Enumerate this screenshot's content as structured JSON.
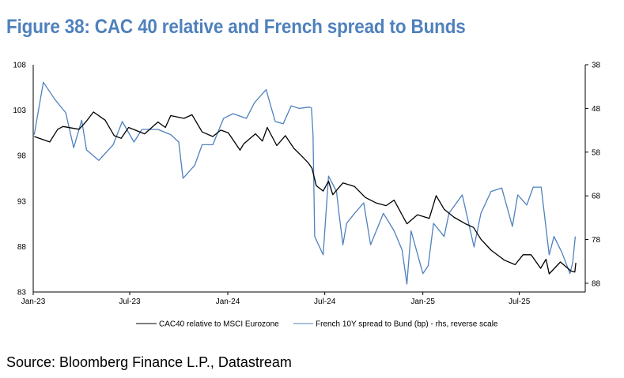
{
  "title": "Figure 38: CAC 40 relative and French spread to Bunds",
  "source": "Source: Bloomberg Finance L.P., Datastream",
  "chart_data": {
    "type": "line",
    "title": "Figure 38: CAC 40 relative and French spread to Bunds",
    "x_ticks": [
      "Jan-23",
      "Jul-23",
      "Jan-24",
      "Jul-24",
      "Jan-25",
      "Jul-25"
    ],
    "x_tick_dates": [
      "2023-01-01",
      "2023-07-01",
      "2024-01-01",
      "2024-07-01",
      "2025-01-01",
      "2025-07-01"
    ],
    "xlim": [
      "2023-01-01",
      "2025-10-31"
    ],
    "y_left": {
      "ticks": [
        "108",
        "103",
        "98",
        "93",
        "88",
        "83"
      ],
      "ylim": [
        83,
        108
      ]
    },
    "y_right": {
      "ticks": [
        "38",
        "48",
        "58",
        "68",
        "78",
        "88"
      ],
      "ylim": [
        38,
        90
      ],
      "reversed": true
    },
    "grid": false,
    "legend_position": "bottom",
    "series": [
      {
        "name": "CAC40 relative to MSCI Eurozone",
        "axis": "left",
        "color": "#000000",
        "x": [
          "2023-01-03",
          "2023-02-01",
          "2023-02-16",
          "2023-02-26",
          "2023-03-28",
          "2023-04-11",
          "2023-04-24",
          "2023-05-16",
          "2023-06-02",
          "2023-06-15",
          "2023-06-29",
          "2023-07-29",
          "2023-08-23",
          "2023-09-06",
          "2023-09-16",
          "2023-10-11",
          "2023-10-26",
          "2023-11-14",
          "2023-12-04",
          "2023-12-19",
          "2024-01-02",
          "2024-01-24",
          "2024-01-31",
          "2024-02-22",
          "2024-03-06",
          "2024-03-15",
          "2024-04-02",
          "2024-04-18",
          "2024-05-04",
          "2024-05-18",
          "2024-05-31",
          "2024-06-07",
          "2024-06-15",
          "2024-06-28",
          "2024-07-08",
          "2024-07-16",
          "2024-08-04",
          "2024-08-26",
          "2024-09-15",
          "2024-10-05",
          "2024-10-24",
          "2024-11-08",
          "2024-12-02",
          "2024-12-22",
          "2025-01-13",
          "2025-01-26",
          "2025-02-10",
          "2025-03-01",
          "2025-03-22",
          "2025-04-06",
          "2025-04-20",
          "2025-05-09",
          "2025-06-03",
          "2025-06-23",
          "2025-07-08",
          "2025-07-23",
          "2025-08-10",
          "2025-08-20",
          "2025-08-26",
          "2025-09-16",
          "2025-10-06",
          "2025-10-13",
          "2025-10-15"
        ],
        "values": [
          100.1,
          99.5,
          100.9,
          101.2,
          100.9,
          101.8,
          102.8,
          101.9,
          100.2,
          99.9,
          101.1,
          100.4,
          101.7,
          101.1,
          102.4,
          102.1,
          102.5,
          100.6,
          100.1,
          100.8,
          100.5,
          98.6,
          99.3,
          100.4,
          99.6,
          101.1,
          99.1,
          100.2,
          98.8,
          98.0,
          97.2,
          96.6,
          94.7,
          94.1,
          95.2,
          93.7,
          95.0,
          94.6,
          93.4,
          92.8,
          92.5,
          93.1,
          90.5,
          91.5,
          91.1,
          93.6,
          92.1,
          91.2,
          90.5,
          90.1,
          88.8,
          87.6,
          86.5,
          86.0,
          87.1,
          87.1,
          85.6,
          86.6,
          85.0,
          86.3,
          85.3,
          85.2,
          86.2
        ]
      },
      {
        "name": "French 10Y spread to Bund (bp) - rhs, reverse scale",
        "axis": "right",
        "color": "#4f81bd",
        "x": [
          "2023-01-03",
          "2023-01-20",
          "2023-02-11",
          "2023-03-03",
          "2023-03-18",
          "2023-04-02",
          "2023-04-11",
          "2023-05-04",
          "2023-05-31",
          "2023-06-17",
          "2023-07-09",
          "2023-07-24",
          "2023-08-23",
          "2023-09-16",
          "2023-10-01",
          "2023-10-09",
          "2023-10-31",
          "2023-11-14",
          "2023-12-04",
          "2023-12-24",
          "2024-01-11",
          "2024-02-05",
          "2024-02-20",
          "2024-03-13",
          "2024-03-30",
          "2024-04-14",
          "2024-04-29",
          "2024-05-14",
          "2024-06-02",
          "2024-06-06",
          "2024-06-09",
          "2024-06-12",
          "2024-06-28",
          "2024-07-08",
          "2024-07-23",
          "2024-07-27",
          "2024-08-04",
          "2024-08-11",
          "2024-08-26",
          "2024-09-12",
          "2024-09-25",
          "2024-10-19",
          "2024-11-08",
          "2024-11-23",
          "2024-12-02",
          "2024-12-10",
          "2025-01-01",
          "2025-01-11",
          "2025-01-21",
          "2025-02-10",
          "2025-02-19",
          "2025-03-16",
          "2025-04-07",
          "2025-04-20",
          "2025-05-09",
          "2025-05-29",
          "2025-06-18",
          "2025-06-28",
          "2025-07-15",
          "2025-07-27",
          "2025-08-11",
          "2025-08-26",
          "2025-09-04",
          "2025-09-19",
          "2025-10-04",
          "2025-10-09",
          "2025-10-14"
        ],
        "values": [
          54,
          42,
          46,
          49,
          57,
          50.7,
          57.5,
          59.9,
          56.3,
          51,
          55.7,
          52.8,
          52.8,
          54,
          55.7,
          64,
          61,
          56.3,
          56.3,
          50.3,
          49.2,
          50.3,
          46.7,
          43.7,
          51,
          51.5,
          47.4,
          48,
          47.7,
          47.9,
          54,
          77.3,
          81.5,
          63.5,
          67,
          71.4,
          79.2,
          74.3,
          72,
          69.6,
          79.2,
          72,
          76,
          80.4,
          88.2,
          76,
          85.8,
          84,
          74.3,
          77.3,
          72,
          67.8,
          79.7,
          72,
          67,
          66.2,
          75,
          67.8,
          70.1,
          66,
          66,
          81.5,
          77.3,
          81,
          85.8,
          83.3,
          77.3
        ]
      }
    ]
  }
}
